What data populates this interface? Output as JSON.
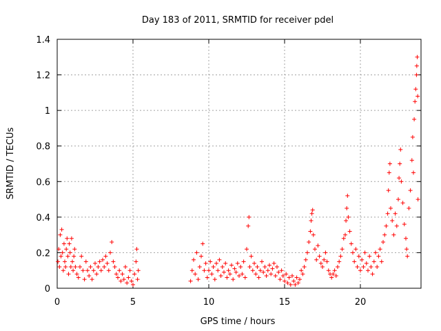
{
  "chart_data": {
    "type": "scatter",
    "title": "Day 183 of 2011, SRMTID for receiver pdel",
    "xlabel": "GPS time / hours",
    "ylabel": "SRMTID / TECUs",
    "xlim": [
      0,
      24
    ],
    "ylim": [
      0,
      1.4
    ],
    "x_ticks": [
      0,
      5,
      10,
      15,
      20
    ],
    "x_tick_labels": [
      "0",
      "5",
      "10",
      "15",
      "20"
    ],
    "y_ticks": [
      0,
      0.2,
      0.4,
      0.6,
      0.8,
      1.0,
      1.2,
      1.4
    ],
    "y_tick_labels": [
      "0",
      "0.2",
      "0.4",
      "0.6",
      "0.8",
      "1",
      "1.2",
      "1.4"
    ],
    "grid": true,
    "marker": "+",
    "color": "#ff0000",
    "series": [
      {
        "name": "SRMTID",
        "points": [
          [
            0.05,
            0.15
          ],
          [
            0.1,
            0.22
          ],
          [
            0.15,
            0.12
          ],
          [
            0.2,
            0.3
          ],
          [
            0.25,
            0.18
          ],
          [
            0.3,
            0.33
          ],
          [
            0.35,
            0.2
          ],
          [
            0.4,
            0.1
          ],
          [
            0.45,
            0.25
          ],
          [
            0.5,
            0.15
          ],
          [
            0.55,
            0.12
          ],
          [
            0.6,
            0.22
          ],
          [
            0.65,
            0.28
          ],
          [
            0.7,
            0.18
          ],
          [
            0.75,
            0.08
          ],
          [
            0.8,
            0.25
          ],
          [
            0.85,
            0.2
          ],
          [
            0.9,
            0.12
          ],
          [
            0.95,
            0.28
          ],
          [
            1.0,
            0.15
          ],
          [
            1.05,
            0.1
          ],
          [
            1.1,
            0.18
          ],
          [
            1.15,
            0.22
          ],
          [
            1.2,
            0.12
          ],
          [
            1.3,
            0.08
          ],
          [
            1.4,
            0.06
          ],
          [
            1.5,
            0.12
          ],
          [
            1.6,
            0.18
          ],
          [
            1.7,
            0.1
          ],
          [
            1.8,
            0.05
          ],
          [
            1.9,
            0.15
          ],
          [
            2.0,
            0.1
          ],
          [
            2.1,
            0.07
          ],
          [
            2.2,
            0.12
          ],
          [
            2.3,
            0.05
          ],
          [
            2.4,
            0.1
          ],
          [
            2.5,
            0.14
          ],
          [
            2.6,
            0.08
          ],
          [
            2.7,
            0.12
          ],
          [
            2.8,
            0.15
          ],
          [
            2.9,
            0.1
          ],
          [
            3.0,
            0.16
          ],
          [
            3.1,
            0.12
          ],
          [
            3.2,
            0.18
          ],
          [
            3.3,
            0.14
          ],
          [
            3.4,
            0.1
          ],
          [
            3.5,
            0.2
          ],
          [
            3.6,
            0.26
          ],
          [
            3.7,
            0.15
          ],
          [
            3.8,
            0.12
          ],
          [
            3.9,
            0.08
          ],
          [
            4.0,
            0.06
          ],
          [
            4.1,
            0.1
          ],
          [
            4.2,
            0.04
          ],
          [
            4.3,
            0.08
          ],
          [
            4.4,
            0.05
          ],
          [
            4.5,
            0.12
          ],
          [
            4.6,
            0.03
          ],
          [
            4.7,
            0.06
          ],
          [
            4.8,
            0.1
          ],
          [
            4.9,
            0.04
          ],
          [
            5.0,
            0.02
          ],
          [
            5.1,
            0.08
          ],
          [
            5.2,
            0.15
          ],
          [
            5.25,
            0.22
          ],
          [
            5.3,
            0.05
          ],
          [
            5.35,
            0.1
          ],
          [
            8.8,
            0.04
          ],
          [
            8.9,
            0.1
          ],
          [
            9.0,
            0.16
          ],
          [
            9.1,
            0.08
          ],
          [
            9.2,
            0.2
          ],
          [
            9.3,
            0.05
          ],
          [
            9.4,
            0.12
          ],
          [
            9.5,
            0.18
          ],
          [
            9.6,
            0.25
          ],
          [
            9.7,
            0.1
          ],
          [
            9.8,
            0.14
          ],
          [
            9.9,
            0.06
          ],
          [
            10.0,
            0.1
          ],
          [
            10.1,
            0.15
          ],
          [
            10.2,
            0.08
          ],
          [
            10.3,
            0.12
          ],
          [
            10.4,
            0.05
          ],
          [
            10.5,
            0.14
          ],
          [
            10.6,
            0.1
          ],
          [
            10.7,
            0.16
          ],
          [
            10.8,
            0.07
          ],
          [
            10.9,
            0.12
          ],
          [
            11.0,
            0.09
          ],
          [
            11.1,
            0.14
          ],
          [
            11.2,
            0.06
          ],
          [
            11.3,
            0.1
          ],
          [
            11.4,
            0.08
          ],
          [
            11.5,
            0.13
          ],
          [
            11.6,
            0.05
          ],
          [
            11.7,
            0.11
          ],
          [
            11.8,
            0.09
          ],
          [
            11.9,
            0.14
          ],
          [
            12.0,
            0.07
          ],
          [
            12.1,
            0.12
          ],
          [
            12.2,
            0.08
          ],
          [
            12.3,
            0.15
          ],
          [
            12.4,
            0.06
          ],
          [
            12.5,
            0.22
          ],
          [
            12.6,
            0.35
          ],
          [
            12.65,
            0.4
          ],
          [
            12.7,
            0.12
          ],
          [
            12.8,
            0.18
          ],
          [
            12.9,
            0.1
          ],
          [
            13.0,
            0.14
          ],
          [
            13.1,
            0.08
          ],
          [
            13.2,
            0.12
          ],
          [
            13.3,
            0.06
          ],
          [
            13.4,
            0.1
          ],
          [
            13.5,
            0.15
          ],
          [
            13.6,
            0.09
          ],
          [
            13.7,
            0.12
          ],
          [
            13.8,
            0.07
          ],
          [
            13.9,
            0.1
          ],
          [
            14.0,
            0.13
          ],
          [
            14.1,
            0.08
          ],
          [
            14.2,
            0.11
          ],
          [
            14.3,
            0.14
          ],
          [
            14.4,
            0.07
          ],
          [
            14.5,
            0.12
          ],
          [
            14.6,
            0.09
          ],
          [
            14.7,
            0.05
          ],
          [
            14.8,
            0.1
          ],
          [
            14.9,
            0.07
          ],
          [
            15.0,
            0.04
          ],
          [
            15.1,
            0.08
          ],
          [
            15.2,
            0.03
          ],
          [
            15.3,
            0.06
          ],
          [
            15.4,
            0.02
          ],
          [
            15.5,
            0.07
          ],
          [
            15.6,
            0.04
          ],
          [
            15.7,
            0.02
          ],
          [
            15.8,
            0.06
          ],
          [
            15.9,
            0.03
          ],
          [
            16.0,
            0.05
          ],
          [
            16.1,
            0.1
          ],
          [
            16.2,
            0.08
          ],
          [
            16.3,
            0.12
          ],
          [
            16.4,
            0.16
          ],
          [
            16.5,
            0.2
          ],
          [
            16.6,
            0.26
          ],
          [
            16.7,
            0.32
          ],
          [
            16.75,
            0.38
          ],
          [
            16.8,
            0.42
          ],
          [
            16.85,
            0.44
          ],
          [
            16.9,
            0.3
          ],
          [
            17.0,
            0.22
          ],
          [
            17.1,
            0.16
          ],
          [
            17.2,
            0.24
          ],
          [
            17.3,
            0.18
          ],
          [
            17.4,
            0.14
          ],
          [
            17.5,
            0.12
          ],
          [
            17.6,
            0.16
          ],
          [
            17.7,
            0.2
          ],
          [
            17.8,
            0.15
          ],
          [
            17.9,
            0.1
          ],
          [
            18.0,
            0.08
          ],
          [
            18.1,
            0.06
          ],
          [
            18.2,
            0.08
          ],
          [
            18.3,
            0.1
          ],
          [
            18.4,
            0.07
          ],
          [
            18.5,
            0.12
          ],
          [
            18.6,
            0.15
          ],
          [
            18.7,
            0.18
          ],
          [
            18.8,
            0.22
          ],
          [
            18.9,
            0.28
          ],
          [
            19.0,
            0.3
          ],
          [
            19.05,
            0.38
          ],
          [
            19.1,
            0.45
          ],
          [
            19.15,
            0.52
          ],
          [
            19.2,
            0.4
          ],
          [
            19.3,
            0.32
          ],
          [
            19.4,
            0.25
          ],
          [
            19.5,
            0.2
          ],
          [
            19.6,
            0.15
          ],
          [
            19.7,
            0.22
          ],
          [
            19.8,
            0.12
          ],
          [
            19.9,
            0.18
          ],
          [
            20.0,
            0.1
          ],
          [
            20.1,
            0.16
          ],
          [
            20.2,
            0.12
          ],
          [
            20.3,
            0.2
          ],
          [
            20.4,
            0.14
          ],
          [
            20.5,
            0.1
          ],
          [
            20.6,
            0.18
          ],
          [
            20.7,
            0.12
          ],
          [
            20.8,
            0.08
          ],
          [
            20.9,
            0.15
          ],
          [
            21.0,
            0.2
          ],
          [
            21.1,
            0.12
          ],
          [
            21.2,
            0.18
          ],
          [
            21.3,
            0.22
          ],
          [
            21.4,
            0.15
          ],
          [
            21.5,
            0.26
          ],
          [
            21.6,
            0.3
          ],
          [
            21.7,
            0.35
          ],
          [
            21.8,
            0.42
          ],
          [
            21.85,
            0.55
          ],
          [
            21.9,
            0.65
          ],
          [
            21.95,
            0.7
          ],
          [
            22.0,
            0.45
          ],
          [
            22.1,
            0.38
          ],
          [
            22.2,
            0.3
          ],
          [
            22.3,
            0.42
          ],
          [
            22.4,
            0.35
          ],
          [
            22.5,
            0.5
          ],
          [
            22.55,
            0.62
          ],
          [
            22.6,
            0.7
          ],
          [
            22.65,
            0.78
          ],
          [
            22.7,
            0.6
          ],
          [
            22.8,
            0.48
          ],
          [
            22.9,
            0.36
          ],
          [
            23.0,
            0.28
          ],
          [
            23.05,
            0.22
          ],
          [
            23.1,
            0.18
          ],
          [
            23.2,
            0.45
          ],
          [
            23.3,
            0.55
          ],
          [
            23.4,
            0.72
          ],
          [
            23.45,
            0.85
          ],
          [
            23.5,
            0.65
          ],
          [
            23.55,
            0.95
          ],
          [
            23.6,
            1.05
          ],
          [
            23.65,
            1.12
          ],
          [
            23.7,
            1.2
          ],
          [
            23.72,
            1.25
          ],
          [
            23.75,
            1.3
          ],
          [
            23.78,
            1.08
          ],
          [
            23.8,
            0.5
          ]
        ]
      }
    ]
  }
}
